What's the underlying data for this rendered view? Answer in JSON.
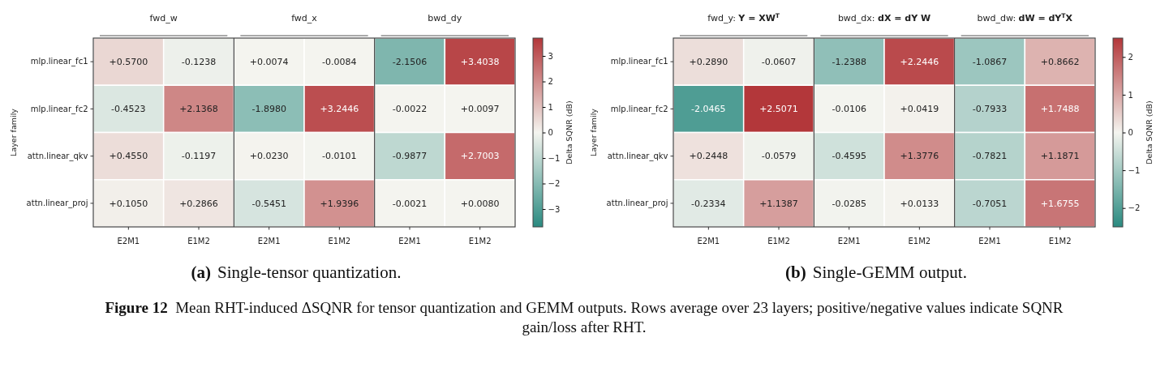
{
  "chart_data": [
    {
      "type": "heatmap",
      "title": "(a)  Single-tensor quantization.",
      "ylabel": "Layer family",
      "clabel": "Delta SQNR (dB)",
      "categories": [
        "E2M1",
        "E1M2",
        "E2M1",
        "E1M2",
        "E2M1",
        "E1M2"
      ],
      "y_categories": [
        "mlp.linear_fc1",
        "mlp.linear_fc2",
        "attn.linear_qkv",
        "attn.linear_proj"
      ],
      "cells": [
        [
          0.57,
          -0.1238,
          0.0074,
          -0.0084,
          -2.1506,
          3.4038
        ],
        [
          -0.4523,
          2.1368,
          -1.898,
          3.2446,
          -0.0022,
          0.0097
        ],
        [
          0.455,
          -0.1197,
          0.023,
          -0.0101,
          -0.9877,
          2.7003
        ],
        [
          0.105,
          0.2866,
          -0.5451,
          1.9396,
          -0.0021,
          0.008
        ]
      ],
      "cell_labels": [
        [
          "+0.5700",
          "-0.1238",
          "+0.0074",
          "-0.0084",
          "-2.1506",
          "+3.4038"
        ],
        [
          "-0.4523",
          "+2.1368",
          "-1.8980",
          "+3.2446",
          "-0.0022",
          "+0.0097"
        ],
        [
          "+0.4550",
          "-0.1197",
          "+0.0230",
          "-0.0101",
          "-0.9877",
          "+2.7003"
        ],
        [
          "+0.1050",
          "+0.2866",
          "-0.5451",
          "+1.9396",
          "-0.0021",
          "+0.0080"
        ]
      ],
      "clim": [
        -3.7,
        3.7
      ],
      "cticks": [
        {
          "value": -3,
          "label": "−3"
        },
        {
          "value": -2,
          "label": "−2"
        },
        {
          "value": -1,
          "label": "−1"
        },
        0,
        1,
        2,
        3
      ],
      "annotations": [
        "fwd_w",
        "fwd_x",
        "bwd_dy"
      ]
    },
    {
      "type": "heatmap",
      "title": "(b)  Single-GEMM output.",
      "ylabel": "Layer family",
      "clabel": "Delta SQNR (dB)",
      "categories": [
        "E2M1",
        "E1M2",
        "E2M1",
        "E1M2",
        "E2M1",
        "E1M2"
      ],
      "y_categories": [
        "mlp.linear_fc1",
        "mlp.linear_fc2",
        "attn.linear_qkv",
        "attn.linear_proj"
      ],
      "cells": [
        [
          0.289,
          -0.0607,
          -1.2388,
          2.2446,
          -1.0867,
          0.8662
        ],
        [
          -2.0465,
          2.5071,
          -0.0106,
          0.0419,
          -0.7933,
          1.7488
        ],
        [
          0.2448,
          -0.0579,
          -0.4595,
          1.3776,
          -0.7821,
          1.1871
        ],
        [
          -0.2334,
          1.1387,
          -0.0285,
          0.0133,
          -0.7051,
          1.6755
        ]
      ],
      "cell_labels": [
        [
          "+0.2890",
          "-0.0607",
          "-1.2388",
          "+2.2446",
          "-1.0867",
          "+0.8662"
        ],
        [
          "-2.0465",
          "+2.5071",
          "-0.0106",
          "+0.0419",
          "-0.7933",
          "+1.7488"
        ],
        [
          "+0.2448",
          "-0.0579",
          "-0.4595",
          "+1.3776",
          "-0.7821",
          "+1.1871"
        ],
        [
          "-0.2334",
          "+1.1387",
          "-0.0285",
          "+0.0133",
          "-0.7051",
          "+1.6755"
        ]
      ],
      "clim": [
        -2.5,
        2.5
      ],
      "cticks": [
        {
          "value": -2,
          "label": "−2"
        },
        {
          "value": -1,
          "label": "−1"
        },
        0,
        1,
        2
      ],
      "annotations": [
        "fwd_y: Y = XW$^{T}$",
        "bwd_dx: dX = dY W",
        "bwd_dw: dW = dY$^{T}$X",
        "Figure 12  Mean RHT-induced ΔSQNR for tensor quantization and GEMM outputs. Rows average over 23 layers; positive/negative values indicate SQNR gain/loss after RHT."
      ]
    }
  ]
}
